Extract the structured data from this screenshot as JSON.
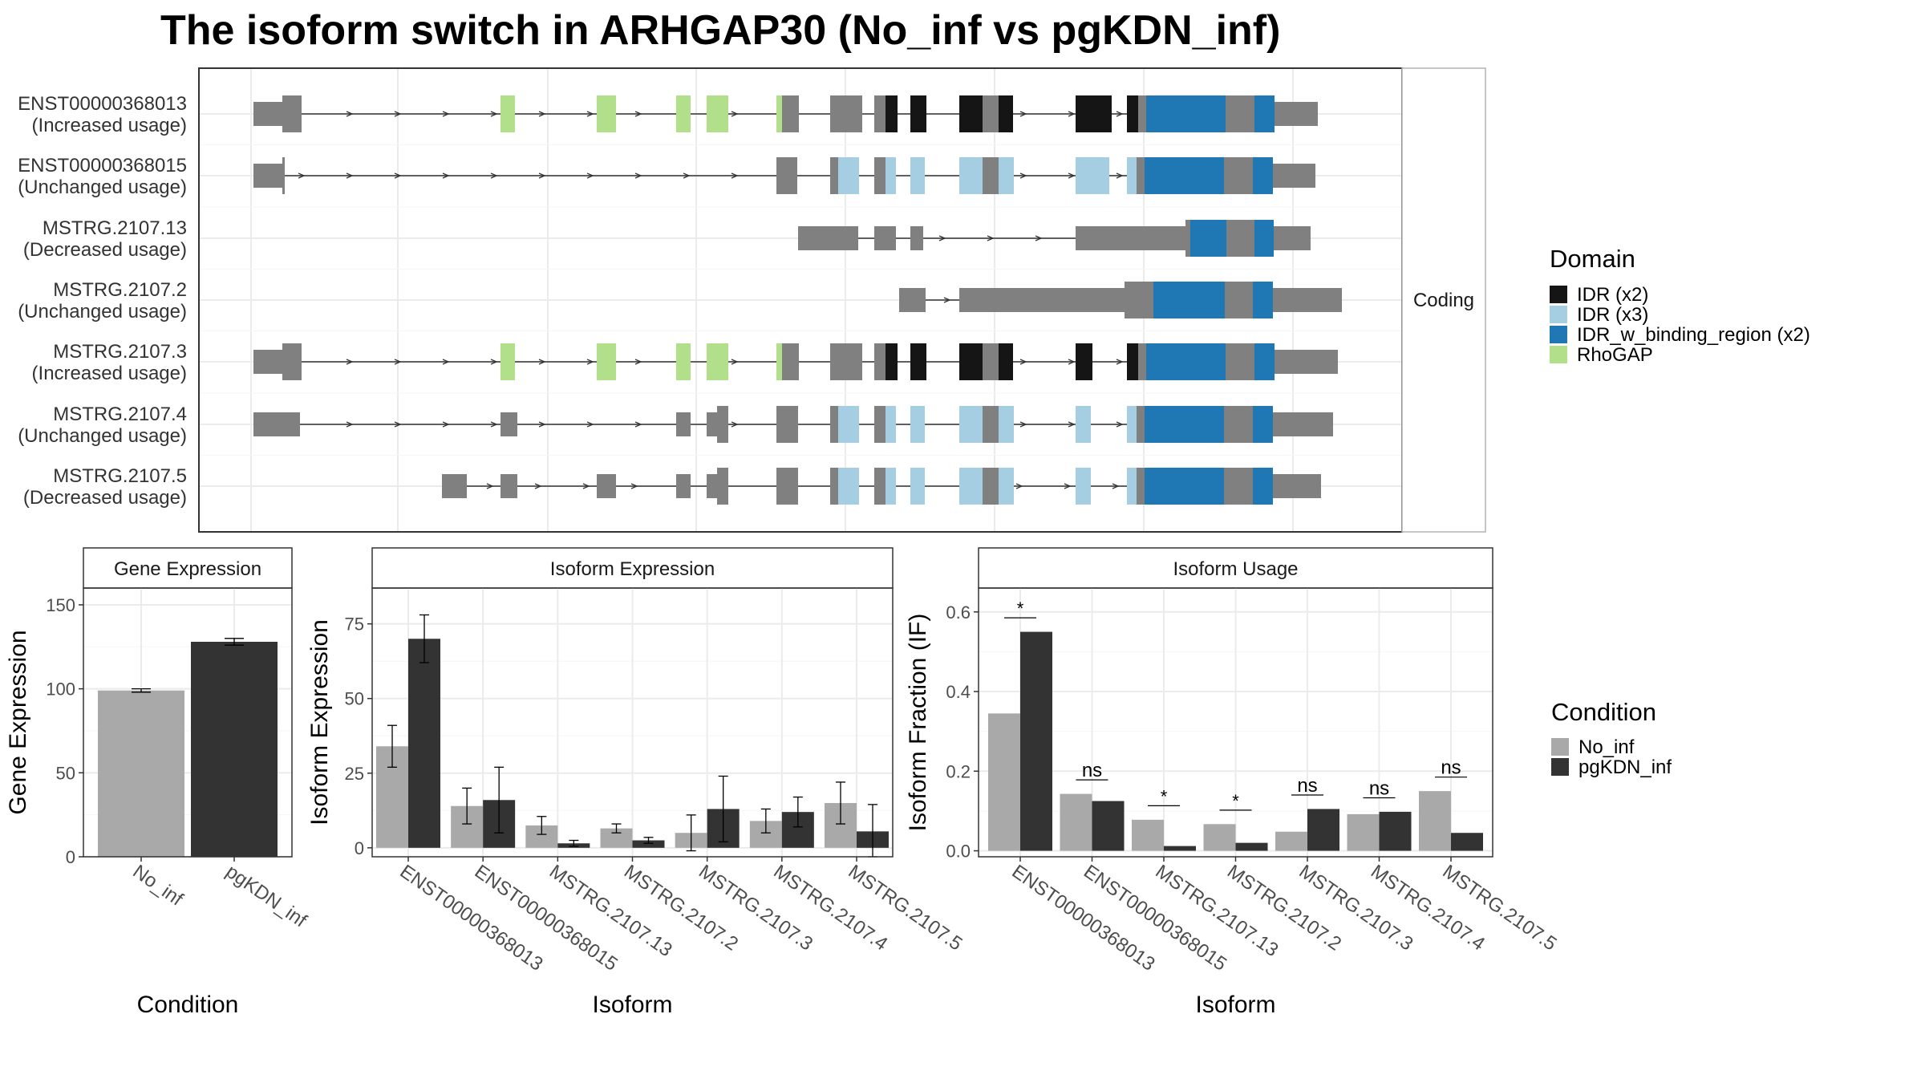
{
  "title": "The isoform switch in ARHGAP30 (No_inf vs pgKDN_inf)",
  "colors": {
    "exon": "#808080",
    "IDR_x2": "#151515",
    "IDR_x3": "#a6cee3",
    "IDR_binding": "#1f78b4",
    "RhoGAP": "#b2df8a",
    "No_inf": "#a9a9a9",
    "pgKDN_inf": "#333333"
  },
  "structure": {
    "strip_label": "Coding",
    "isoforms": [
      {
        "id": "ENST00000368013",
        "usage": "(Increased usage)"
      },
      {
        "id": "ENST00000368015",
        "usage": "(Unchanged usage)"
      },
      {
        "id": "MSTRG.2107.13",
        "usage": "(Decreased usage)"
      },
      {
        "id": "MSTRG.2107.2",
        "usage": "(Unchanged usage)"
      },
      {
        "id": "MSTRG.2107.3",
        "usage": "(Increased usage)"
      },
      {
        "id": "MSTRG.2107.4",
        "usage": "(Unchanged usage)"
      },
      {
        "id": "MSTRG.2107.5",
        "usage": "(Decreased usage)"
      }
    ]
  },
  "domain_legend": {
    "title": "Domain",
    "items": [
      {
        "label": "IDR (x2)",
        "color": "#151515"
      },
      {
        "label": "IDR (x3)",
        "color": "#a6cee3"
      },
      {
        "label": "IDR_w_binding_region (x2)",
        "color": "#1f78b4"
      },
      {
        "label": "RhoGAP",
        "color": "#b2df8a"
      }
    ]
  },
  "condition_legend": {
    "title": "Condition",
    "items": [
      {
        "label": "No_inf",
        "color": "#a9a9a9"
      },
      {
        "label": "pgKDN_inf",
        "color": "#333333"
      }
    ]
  },
  "chart_data": [
    {
      "type": "bar",
      "title": "Gene Expression",
      "xlabel": "Condition",
      "ylabel": "Gene Expression",
      "categories": [
        "No_inf",
        "pgKDN_inf"
      ],
      "values": [
        99,
        128
      ],
      "errors": [
        1,
        2
      ],
      "ylim": [
        0,
        160
      ],
      "yticks": [
        0,
        50,
        100,
        150
      ],
      "grid": true
    },
    {
      "type": "bar",
      "title": "Isoform Expression",
      "xlabel": "Isoform",
      "ylabel": "Isoform Expression",
      "categories": [
        "ENST00000368013",
        "ENST00000368015",
        "MSTRG.2107.13",
        "MSTRG.2107.2",
        "MSTRG.2107.3",
        "MSTRG.2107.4",
        "MSTRG.2107.5"
      ],
      "series": [
        {
          "name": "No_inf",
          "values": [
            34,
            14,
            7.5,
            6.5,
            5,
            9,
            15
          ],
          "errors": [
            7,
            6,
            3,
            1.5,
            6,
            4,
            7
          ]
        },
        {
          "name": "pgKDN_inf",
          "values": [
            70,
            16,
            1.5,
            2.5,
            13,
            12,
            5.5
          ],
          "errors": [
            8,
            11,
            1,
            1,
            11,
            5,
            9
          ]
        }
      ],
      "ylim": [
        -3,
        87
      ],
      "yticks": [
        0,
        25,
        50,
        75
      ],
      "grid": true
    },
    {
      "type": "bar",
      "title": "Isoform Usage",
      "xlabel": "Isoform",
      "ylabel": "Isoform Fraction (IF)",
      "categories": [
        "ENST00000368013",
        "ENST00000368015",
        "MSTRG.2107.13",
        "MSTRG.2107.2",
        "MSTRG.2107.3",
        "MSTRG.2107.4",
        "MSTRG.2107.5"
      ],
      "series": [
        {
          "name": "No_inf",
          "values": [
            0.345,
            0.143,
            0.078,
            0.067,
            0.048,
            0.092,
            0.15
          ]
        },
        {
          "name": "pgKDN_inf",
          "values": [
            0.55,
            0.125,
            0.012,
            0.02,
            0.105,
            0.098,
            0.045
          ]
        }
      ],
      "significance": [
        "*",
        "ns",
        "*",
        "*",
        "ns",
        "ns",
        "ns"
      ],
      "ylim": [
        -0.015,
        0.66
      ],
      "yticks": [
        0.0,
        0.2,
        0.4,
        0.6
      ],
      "grid": true
    }
  ]
}
